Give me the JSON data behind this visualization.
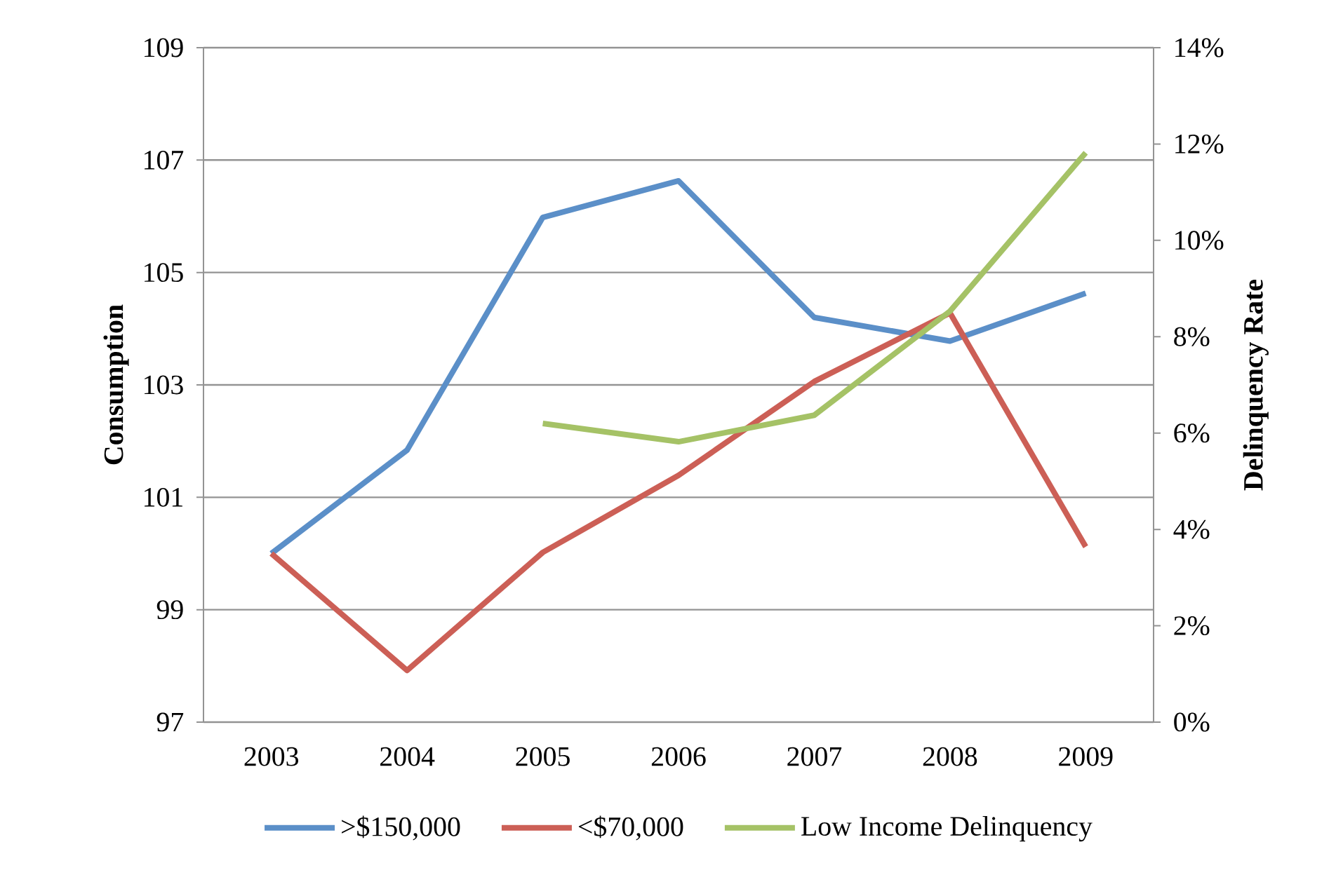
{
  "chart_data": {
    "type": "line",
    "categories": [
      "2003",
      "2004",
      "2005",
      "2006",
      "2007",
      "2008",
      "2009"
    ],
    "ylabel": "Consumption",
    "y2label": "Delinquency Rate",
    "ylim": [
      97,
      109
    ],
    "yticks": [
      97,
      99,
      101,
      103,
      105,
      107,
      109
    ],
    "y2lim": [
      0,
      14
    ],
    "y2ticks": [
      {
        "value": 0,
        "label": "0%"
      },
      {
        "value": 2,
        "label": "2%"
      },
      {
        "value": 4,
        "label": "4%"
      },
      {
        "value": 6,
        "label": "6%"
      },
      {
        "value": 8,
        "label": "8%"
      },
      {
        "value": 10,
        "label": "10%"
      },
      {
        "value": 12,
        "label": "12%"
      },
      {
        "value": 14,
        "label": "14%"
      }
    ],
    "grid": "y",
    "legend": "bottom",
    "marker": "none",
    "line_style": "solid",
    "series": [
      {
        "name": ">$150,000",
        "color": "#5b8fc8",
        "values": [
          100.0,
          101.84,
          105.98,
          106.63,
          104.2,
          103.78,
          104.63
        ]
      },
      {
        "name": "<$70,000",
        "color": "#cc5f56",
        "values": [
          100.0,
          97.92,
          100.02,
          101.39,
          103.06,
          104.28,
          100.12
        ]
      },
      {
        "name": "Low Income Delinquency",
        "color": "#a5c266",
        "axis": "y2",
        "values": [
          null,
          null,
          6.2,
          5.82,
          6.37,
          8.53,
          11.82
        ]
      }
    ]
  }
}
